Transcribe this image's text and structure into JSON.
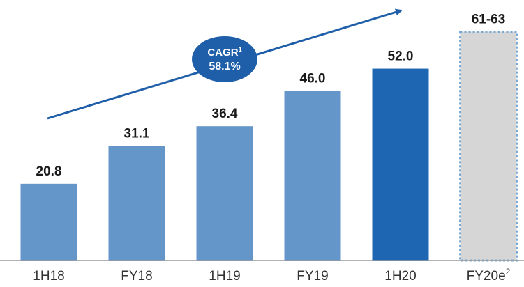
{
  "chart_data": {
    "type": "bar",
    "categories": [
      "1H18",
      "FY18",
      "1H19",
      "FY19",
      "1H20",
      "FY20e"
    ],
    "category_superscripts": [
      "",
      "",
      "",
      "",
      "",
      "2"
    ],
    "values": [
      20.8,
      31.1,
      36.4,
      46.0,
      52.0,
      62
    ],
    "value_labels": [
      "20.8",
      "31.1",
      "36.4",
      "46.0",
      "52.0",
      "61-63"
    ],
    "estimate_range": [
      61,
      63
    ],
    "ylim": [
      0,
      64
    ],
    "grid": false,
    "legend": "none",
    "colors": {
      "bar": "#6596c9",
      "highlight": "#1f66b2",
      "estimate_fill": "#d6d6d6",
      "estimate_border": "#7aa9d6",
      "arrow": "#1f5ea8",
      "axis": "#9a9a9a"
    },
    "bar_styles": [
      "normal",
      "normal",
      "normal",
      "normal",
      "highlight",
      "estimate"
    ],
    "annotation": {
      "label": "CAGR",
      "superscript": "1",
      "value": "58.1%"
    }
  }
}
